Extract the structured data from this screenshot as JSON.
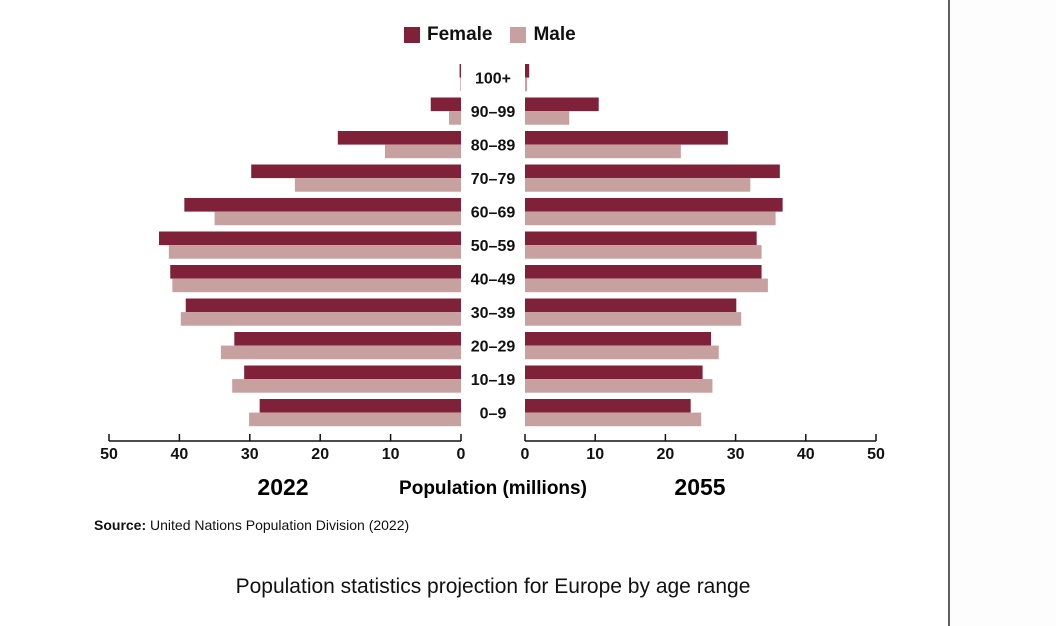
{
  "legend": {
    "items": [
      {
        "label": "Female",
        "color": "#7f2239"
      },
      {
        "label": "Male",
        "color": "#c7a0a0"
      }
    ]
  },
  "source": {
    "label": "Source:",
    "text": "United Nations Population Division (2022)"
  },
  "caption": "Population statistics projection for Europe by age range",
  "chart_data": {
    "type": "bar",
    "orientation": "horizontal",
    "subtype": "population-pyramid",
    "title": "Population statistics projection for Europe by age range",
    "xlabel": "Population (millions)",
    "ylabel": "",
    "panels": [
      {
        "label": "2022",
        "direction": "left",
        "xlim": [
          0,
          50
        ],
        "ticks": [
          50,
          40,
          30,
          20,
          10,
          0
        ]
      },
      {
        "label": "2055",
        "direction": "right",
        "xlim": [
          0,
          50
        ],
        "ticks": [
          0,
          10,
          20,
          30,
          40,
          50
        ]
      }
    ],
    "categories": [
      "100+",
      "90–99",
      "80–89",
      "70–79",
      "60–69",
      "50–59",
      "40–49",
      "30–39",
      "20–29",
      "10–19",
      "0–9"
    ],
    "series": [
      {
        "name": "Female",
        "panel": "2022",
        "color": "#7f2239",
        "values": [
          0.2,
          4.3,
          17.5,
          29.8,
          39.3,
          42.9,
          41.3,
          39.1,
          32.2,
          30.8,
          28.6
        ]
      },
      {
        "name": "Male",
        "panel": "2022",
        "color": "#c7a0a0",
        "values": [
          0.1,
          1.7,
          10.8,
          23.6,
          35.0,
          41.5,
          41.0,
          39.8,
          34.1,
          32.5,
          30.1
        ]
      },
      {
        "name": "Female",
        "panel": "2055",
        "color": "#7f2239",
        "values": [
          0.6,
          10.5,
          28.9,
          36.3,
          36.7,
          33.0,
          33.7,
          30.1,
          26.5,
          25.3,
          23.6
        ]
      },
      {
        "name": "Male",
        "panel": "2055",
        "color": "#c7a0a0",
        "values": [
          0.3,
          6.3,
          22.2,
          32.1,
          35.7,
          33.7,
          34.6,
          30.8,
          27.6,
          26.7,
          25.1
        ]
      }
    ],
    "legend": "top-center",
    "grid": false
  }
}
